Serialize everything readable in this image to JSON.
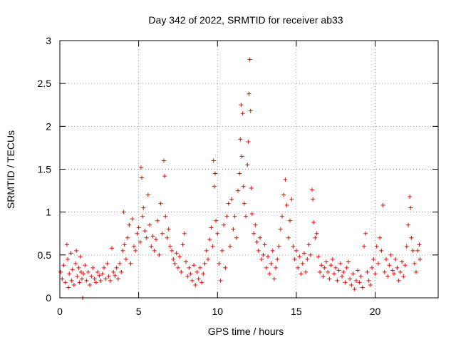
{
  "chart_data": {
    "type": "scatter",
    "title": "Day 342 of 2022, SRMTID for receiver ab33",
    "xlabel": "GPS time / hours",
    "ylabel": "SRMTID / TECUs",
    "xlim": [
      0,
      24
    ],
    "ylim": [
      0,
      3
    ],
    "xticks": [
      0,
      5,
      10,
      15,
      20
    ],
    "xtick_labels": [
      "0",
      "5",
      "10",
      "15",
      "20"
    ],
    "yticks": [
      0,
      0.5,
      1,
      1.5,
      2,
      2.5,
      3
    ],
    "ytick_labels": [
      "0",
      "0.5",
      "1",
      "1.5",
      "2",
      "2.5",
      "3"
    ],
    "grid": true,
    "marker": "plus",
    "series": [
      {
        "name": "ab33",
        "color": "#ff0000",
        "points": [
          [
            0.05,
            0.3
          ],
          [
            0.15,
            0.22
          ],
          [
            0.25,
            0.38
          ],
          [
            0.35,
            0.18
          ],
          [
            0.45,
            0.62
          ],
          [
            0.5,
            0.45
          ],
          [
            0.55,
            0.12
          ],
          [
            0.6,
            0.28
          ],
          [
            0.7,
            0.52
          ],
          [
            0.75,
            0.2
          ],
          [
            0.8,
            0.33
          ],
          [
            0.9,
            0.15
          ],
          [
            1.0,
            0.4
          ],
          [
            1.05,
            0.55
          ],
          [
            1.1,
            0.25
          ],
          [
            1.2,
            0.35
          ],
          [
            1.25,
            0.18
          ],
          [
            1.3,
            0.48
          ],
          [
            1.35,
            0.3
          ],
          [
            1.4,
            0.22
          ],
          [
            1.45,
            0.0
          ],
          [
            1.5,
            0.28
          ],
          [
            1.6,
            0.38
          ],
          [
            1.7,
            0.2
          ],
          [
            1.8,
            0.3
          ],
          [
            1.9,
            0.15
          ],
          [
            2.0,
            0.25
          ],
          [
            2.1,
            0.35
          ],
          [
            2.2,
            0.22
          ],
          [
            2.3,
            0.18
          ],
          [
            2.4,
            0.3
          ],
          [
            2.5,
            0.26
          ],
          [
            2.6,
            0.2
          ],
          [
            2.7,
            0.28
          ],
          [
            2.8,
            0.35
          ],
          [
            2.9,
            0.22
          ],
          [
            3.0,
            0.4
          ],
          [
            3.1,
            0.25
          ],
          [
            3.2,
            0.2
          ],
          [
            3.3,
            0.58
          ],
          [
            3.4,
            0.3
          ],
          [
            3.5,
            0.26
          ],
          [
            3.6,
            0.35
          ],
          [
            3.7,
            0.22
          ],
          [
            3.8,
            0.4
          ],
          [
            3.9,
            0.3
          ],
          [
            4.0,
            0.55
          ],
          [
            4.05,
            1.0
          ],
          [
            4.1,
            0.62
          ],
          [
            4.2,
            0.45
          ],
          [
            4.3,
            0.7
          ],
          [
            4.4,
            0.85
          ],
          [
            4.5,
            0.4
          ],
          [
            4.6,
            0.92
          ],
          [
            4.7,
            0.6
          ],
          [
            4.8,
            0.55
          ],
          [
            4.9,
            0.75
          ],
          [
            5.0,
            0.82
          ],
          [
            5.1,
            0.65
          ],
          [
            5.15,
            1.52
          ],
          [
            5.2,
            1.4
          ],
          [
            5.25,
            0.95
          ],
          [
            5.3,
            1.05
          ],
          [
            5.4,
            0.78
          ],
          [
            5.5,
            0.7
          ],
          [
            5.6,
            1.2
          ],
          [
            5.7,
            0.85
          ],
          [
            5.8,
            0.6
          ],
          [
            5.9,
            0.72
          ],
          [
            6.0,
            0.55
          ],
          [
            6.1,
            0.68
          ],
          [
            6.2,
            0.9
          ],
          [
            6.3,
            0.5
          ],
          [
            6.4,
            1.1
          ],
          [
            6.5,
            0.75
          ],
          [
            6.6,
            1.6
          ],
          [
            6.65,
            1.42
          ],
          [
            6.7,
            0.95
          ],
          [
            6.8,
            0.7
          ],
          [
            6.9,
            0.8
          ],
          [
            7.0,
            0.6
          ],
          [
            7.1,
            0.55
          ],
          [
            7.2,
            0.45
          ],
          [
            7.3,
            0.4
          ],
          [
            7.4,
            0.52
          ],
          [
            7.5,
            0.35
          ],
          [
            7.6,
            0.48
          ],
          [
            7.7,
            0.3
          ],
          [
            7.8,
            0.62
          ],
          [
            7.9,
            0.75
          ],
          [
            8.0,
            0.42
          ],
          [
            8.1,
            0.25
          ],
          [
            8.2,
            0.35
          ],
          [
            8.3,
            0.28
          ],
          [
            8.4,
            0.2
          ],
          [
            8.5,
            0.38
          ],
          [
            8.6,
            0.15
          ],
          [
            8.7,
            0.3
          ],
          [
            8.8,
            0.22
          ],
          [
            8.9,
            0.35
          ],
          [
            9.0,
            0.18
          ],
          [
            9.1,
            0.28
          ],
          [
            9.2,
            0.4
          ],
          [
            9.3,
            0.55
          ],
          [
            9.4,
            0.45
          ],
          [
            9.5,
            0.68
          ],
          [
            9.6,
            0.82
          ],
          [
            9.7,
            0.6
          ],
          [
            9.75,
            1.6
          ],
          [
            9.8,
            1.3
          ],
          [
            9.85,
            1.45
          ],
          [
            9.9,
            0.9
          ],
          [
            10.0,
            0.75
          ],
          [
            10.1,
            0.4
          ],
          [
            10.2,
            0.2
          ],
          [
            10.3,
            0.55
          ],
          [
            10.4,
            0.85
          ],
          [
            10.5,
            0.35
          ],
          [
            10.6,
            0.95
          ],
          [
            10.7,
            1.1
          ],
          [
            10.8,
            0.6
          ],
          [
            10.9,
            1.15
          ],
          [
            11.0,
            0.8
          ],
          [
            11.1,
            0.95
          ],
          [
            11.2,
            0.7
          ],
          [
            11.3,
            1.25
          ],
          [
            11.4,
            1.45
          ],
          [
            11.45,
            1.85
          ],
          [
            11.5,
            2.25
          ],
          [
            11.55,
            1.65
          ],
          [
            11.6,
            2.15
          ],
          [
            11.65,
            1.3
          ],
          [
            11.7,
            1.1
          ],
          [
            11.8,
            0.95
          ],
          [
            11.9,
            1.55
          ],
          [
            11.95,
            1.82
          ],
          [
            12.0,
            2.38
          ],
          [
            12.05,
            2.78
          ],
          [
            12.1,
            2.18
          ],
          [
            12.15,
            1.28
          ],
          [
            12.2,
            0.98
          ],
          [
            12.3,
            0.75
          ],
          [
            12.4,
            0.85
          ],
          [
            12.5,
            0.65
          ],
          [
            12.6,
            0.55
          ],
          [
            12.7,
            0.7
          ],
          [
            12.8,
            0.45
          ],
          [
            12.9,
            0.5
          ],
          [
            13.0,
            0.62
          ],
          [
            13.1,
            0.35
          ],
          [
            13.2,
            0.48
          ],
          [
            13.3,
            0.28
          ],
          [
            13.4,
            0.4
          ],
          [
            13.5,
            0.55
          ],
          [
            13.6,
            0.22
          ],
          [
            13.7,
            0.35
          ],
          [
            13.8,
            0.45
          ],
          [
            13.9,
            0.6
          ],
          [
            14.0,
            0.8
          ],
          [
            14.1,
            0.95
          ],
          [
            14.2,
            1.2
          ],
          [
            14.3,
            1.38
          ],
          [
            14.4,
            1.08
          ],
          [
            14.5,
            0.7
          ],
          [
            14.6,
            0.9
          ],
          [
            14.7,
            1.15
          ],
          [
            14.8,
            0.6
          ],
          [
            14.9,
            0.45
          ],
          [
            15.0,
            0.55
          ],
          [
            15.1,
            0.35
          ],
          [
            15.2,
            0.48
          ],
          [
            15.3,
            0.28
          ],
          [
            15.4,
            0.4
          ],
          [
            15.5,
            0.52
          ],
          [
            15.6,
            0.3
          ],
          [
            15.7,
            0.45
          ],
          [
            15.8,
            0.62
          ],
          [
            15.9,
            0.5
          ],
          [
            16.0,
            1.26
          ],
          [
            16.05,
            1.15
          ],
          [
            16.1,
            0.88
          ],
          [
            16.2,
            0.7
          ],
          [
            16.3,
            0.75
          ],
          [
            16.4,
            0.48
          ],
          [
            16.5,
            0.3
          ],
          [
            16.6,
            0.38
          ],
          [
            16.7,
            0.25
          ],
          [
            16.8,
            0.35
          ],
          [
            16.9,
            0.42
          ],
          [
            17.0,
            0.3
          ],
          [
            17.1,
            0.22
          ],
          [
            17.2,
            0.38
          ],
          [
            17.3,
            0.45
          ],
          [
            17.4,
            0.28
          ],
          [
            17.5,
            0.35
          ],
          [
            17.6,
            0.2
          ],
          [
            17.7,
            0.32
          ],
          [
            17.8,
            0.4
          ],
          [
            17.9,
            0.25
          ],
          [
            18.0,
            0.3
          ],
          [
            18.1,
            0.18
          ],
          [
            18.2,
            0.35
          ],
          [
            18.3,
            0.42
          ],
          [
            18.4,
            0.22
          ],
          [
            18.5,
            0.15
          ],
          [
            18.6,
            0.28
          ],
          [
            18.7,
            0.1
          ],
          [
            18.8,
            0.2
          ],
          [
            18.9,
            0.32
          ],
          [
            19.0,
            0.18
          ],
          [
            19.1,
            0.25
          ],
          [
            19.2,
            0.12
          ],
          [
            19.3,
            0.6
          ],
          [
            19.4,
            0.75
          ],
          [
            19.5,
            0.3
          ],
          [
            19.6,
            0.2
          ],
          [
            19.7,
            0.15
          ],
          [
            19.8,
            0.35
          ],
          [
            19.9,
            0.45
          ],
          [
            20.0,
            0.28
          ],
          [
            20.1,
            0.6
          ],
          [
            20.2,
            0.4
          ],
          [
            20.3,
            0.7
          ],
          [
            20.4,
            0.55
          ],
          [
            20.5,
            1.08
          ],
          [
            20.6,
            0.3
          ],
          [
            20.7,
            0.45
          ],
          [
            20.8,
            0.25
          ],
          [
            20.9,
            0.38
          ],
          [
            21.0,
            0.5
          ],
          [
            21.1,
            0.32
          ],
          [
            21.2,
            0.28
          ],
          [
            21.3,
            0.45
          ],
          [
            21.4,
            0.35
          ],
          [
            21.5,
            0.2
          ],
          [
            21.6,
            0.3
          ],
          [
            21.7,
            0.42
          ],
          [
            21.8,
            0.25
          ],
          [
            21.9,
            0.38
          ],
          [
            22.0,
            0.6
          ],
          [
            22.1,
            0.85
          ],
          [
            22.2,
            1.18
          ],
          [
            22.25,
            1.05
          ],
          [
            22.3,
            0.7
          ],
          [
            22.4,
            0.55
          ],
          [
            22.5,
            0.4
          ],
          [
            22.6,
            0.3
          ],
          [
            22.7,
            0.55
          ],
          [
            22.8,
            0.62
          ],
          [
            22.85,
            0.45
          ]
        ]
      }
    ]
  }
}
